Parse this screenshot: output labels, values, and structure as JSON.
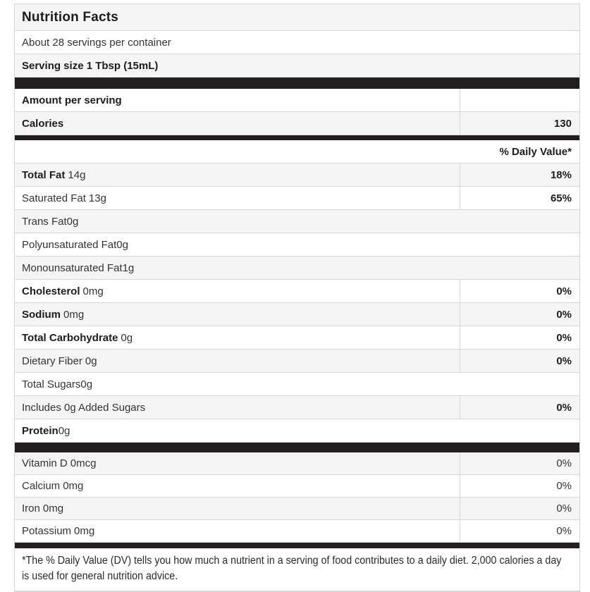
{
  "title": "Nutrition Facts",
  "servings_per_container": "About 28 servings per container",
  "serving_size": "Serving size 1 Tbsp (15mL)",
  "amount_per_serving": "Amount per serving",
  "calories": {
    "label": "Calories",
    "value": "130"
  },
  "daily_value_header": "% Daily Value*",
  "nutrients": [
    {
      "name": "Total Fat",
      "amount": "14g",
      "dv": "18%"
    },
    {
      "name": "Saturated Fat",
      "amount": "13g",
      "dv": "65%"
    },
    {
      "name": "Trans Fat",
      "amount": "0g",
      "dv": ""
    },
    {
      "name": "Polyunsaturated Fat",
      "amount": "0g",
      "dv": ""
    },
    {
      "name": "Monounsaturated Fat",
      "amount": "1g",
      "dv": ""
    },
    {
      "name": "Cholesterol",
      "amount": "0mg",
      "dv": "0%"
    },
    {
      "name": "Sodium",
      "amount": "0mg",
      "dv": "0%"
    },
    {
      "name": "Total Carbohydrate",
      "amount": "0g",
      "dv": "0%"
    },
    {
      "name": "Dietary Fiber",
      "amount": "0g",
      "dv": "0%"
    },
    {
      "name": "Total Sugars",
      "amount": "0g",
      "dv": ""
    },
    {
      "name": "Includes 0g Added Sugars",
      "amount": "",
      "dv": "0%"
    },
    {
      "name": "Protein",
      "amount": "0g",
      "dv": ""
    }
  ],
  "vitamins": [
    {
      "name": "Vitamin D",
      "amount": "0mcg",
      "dv": "0%"
    },
    {
      "name": "Calcium",
      "amount": "0mg",
      "dv": "0%"
    },
    {
      "name": "Iron",
      "amount": "0mg",
      "dv": "0%"
    },
    {
      "name": "Potassium",
      "amount": "0mg",
      "dv": "0%"
    }
  ],
  "footnote": "*The % Daily Value (DV) tells you how much a nutrient in a serving of food contributes to a daily diet. 2,000 calories a day is used for general nutrition advice.",
  "colors": {
    "bar": "#231f20",
    "stripe": "#f5f5f5",
    "border": "#d6d6d6",
    "text": "#343434"
  }
}
